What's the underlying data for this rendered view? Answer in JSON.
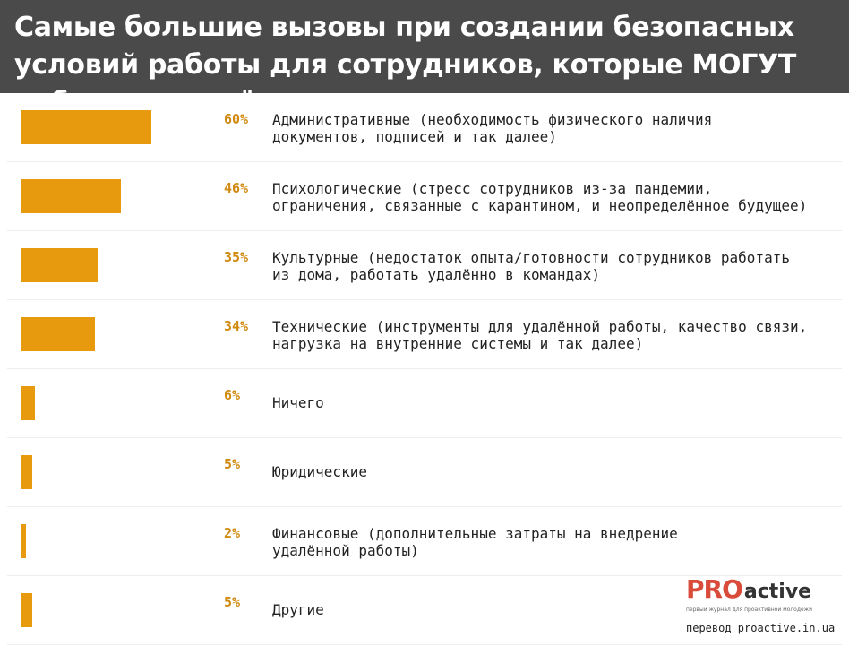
{
  "title": "Самые большие вызовы при создании безопасных условий работы для сотрудников, которые МОГУТ работать удалённо",
  "chart_data": {
    "type": "bar",
    "orientation": "horizontal",
    "categories": [
      "Административные (необходимость физического наличия документов, подписей и так далее)",
      "Психологические (стресс сотрудников из-за пандемии, ограничения, связанные с карантином, и неопределённое будущее)",
      "Культурные (недостаток опыта/готовности сотрудников работать из дома, работать удалённо в командах)",
      "Технические (инструменты для удалённой работы, качество связи, нагрузка на внутренние системы и так далее)",
      "Ничего",
      "Юридические",
      "Финансовые (дополнительные затраты на внедрение удалённой работы)",
      "Другие"
    ],
    "label_lines": [
      [
        "Административные (необходимость физического наличия",
        "документов, подписей и так далее)"
      ],
      [
        "Психологические (стресс сотрудников из-за пандемии,",
        "ограничения, связанные с карантином, и неопределённое будущее)"
      ],
      [
        "Культурные (недостаток опыта/готовности сотрудников работать",
        "из дома, работать удалённо в командах)"
      ],
      [
        "Технические (инструменты для удалённой работы, качество связи,",
        "нагрузка на внутренние системы и так далее)"
      ],
      [
        "Ничего"
      ],
      [
        "Юридические"
      ],
      [
        "Финансовые (дополнительные затраты на внедрение",
        "удалённой работы)"
      ],
      [
        "Другие"
      ]
    ],
    "values": [
      60,
      46,
      35,
      34,
      6,
      5,
      2,
      5
    ],
    "value_labels": [
      "60%",
      "46%",
      "35%",
      "34%",
      "6%",
      "5%",
      "2%",
      "5%"
    ],
    "unit": "%",
    "bar_color": "#e89a0f",
    "label_color": "#d08a10"
  },
  "branding": {
    "logo_pro": "PRO",
    "logo_active": "active",
    "tagline": "первый журнал для проактивной молодёжи",
    "credit": "перевод proactive.in.ua"
  }
}
